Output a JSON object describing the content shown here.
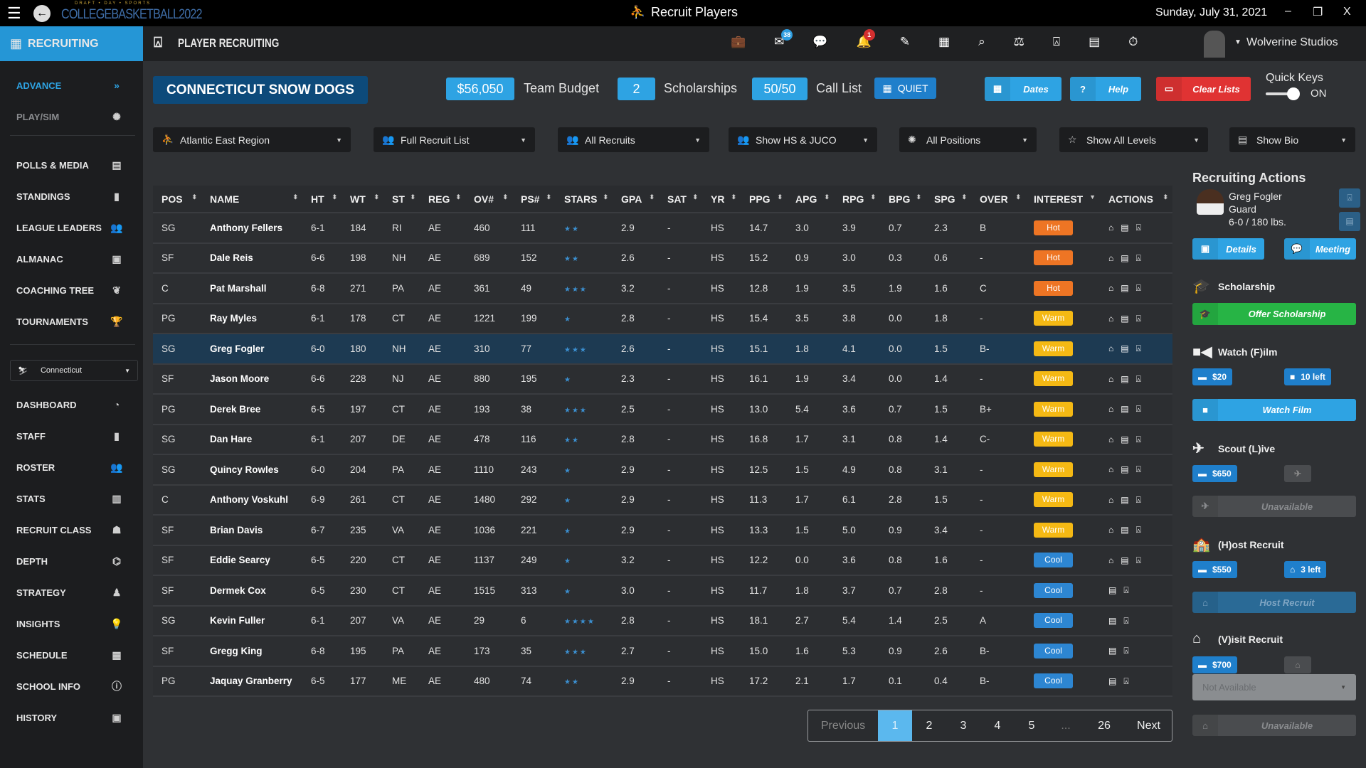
{
  "titlebar": {
    "logo_top": "DRAFT • DAY • SPORTS",
    "logo": "COLLEGEBASKETBALL2022",
    "title": "Recruit Players",
    "date": "Sunday, July 31, 2021",
    "minimize": "–",
    "restore": "❐",
    "close": "X"
  },
  "header": {
    "section": "RECRUITING",
    "page_title": "PLAYER RECRUITING",
    "mail_count": "38",
    "alert_count": "1",
    "user": "Wolverine Studios"
  },
  "sidebar": {
    "top": [
      {
        "label": "ADVANCE",
        "icon": "»"
      },
      {
        "label": "PLAY/SIM",
        "icon": "✺"
      }
    ],
    "league": [
      {
        "label": "POLLS & MEDIA",
        "icon": "▤"
      },
      {
        "label": "STANDINGS",
        "icon": "▮"
      },
      {
        "label": "LEAGUE LEADERS",
        "icon": "👥"
      },
      {
        "label": "ALMANAC",
        "icon": "▣"
      },
      {
        "label": "COACHING TREE",
        "icon": "❦"
      },
      {
        "label": "TOURNAMENTS",
        "icon": "🏆"
      }
    ],
    "team_select": "Connecticut",
    "team": [
      {
        "label": "DASHBOARD",
        "icon": "◔"
      },
      {
        "label": "STAFF",
        "icon": "▮"
      },
      {
        "label": "ROSTER",
        "icon": "👥"
      },
      {
        "label": "STATS",
        "icon": "▥"
      },
      {
        "label": "RECRUIT CLASS",
        "icon": "☗"
      },
      {
        "label": "DEPTH",
        "icon": "⌬"
      },
      {
        "label": "STRATEGY",
        "icon": "♟"
      },
      {
        "label": "INSIGHTS",
        "icon": "💡"
      },
      {
        "label": "SCHEDULE",
        "icon": "▦"
      },
      {
        "label": "SCHOOL INFO",
        "icon": "ⓘ"
      },
      {
        "label": "HISTORY",
        "icon": "▣"
      }
    ]
  },
  "summary": {
    "team_name": "CONNECTICUT SNOW DOGS",
    "budget": "$56,050",
    "budget_label": "Team Budget",
    "scholarships": "2",
    "scholarships_label": "Scholarships",
    "call_list": "50/50",
    "call_list_label": "Call List",
    "quiet": "QUIET",
    "dates": "Dates",
    "help": "Help",
    "clear": "Clear Lists",
    "quick_keys": "Quick Keys",
    "quick_keys_state": "ON"
  },
  "filters": [
    "Atlantic East Region",
    "Full Recruit List",
    "All Recruits",
    "Show HS & JUCO",
    "All Positions",
    "Show All Levels",
    "Show Bio"
  ],
  "columns": [
    "POS",
    "NAME",
    "HT",
    "WT",
    "ST",
    "REG",
    "OV#",
    "PS#",
    "STARS",
    "GPA",
    "SAT",
    "YR",
    "PPG",
    "APG",
    "RPG",
    "BPG",
    "SPG",
    "OVER",
    "INTEREST",
    "ACTIONS"
  ],
  "rows": [
    [
      "SG",
      "Anthony Fellers",
      "6-1",
      "184",
      "RI",
      "AE",
      "460",
      "111",
      2,
      "2.9",
      "-",
      "HS",
      "14.7",
      "3.0",
      "3.9",
      "0.7",
      "2.3",
      "B",
      "Hot",
      3
    ],
    [
      "SF",
      "Dale Reis",
      "6-6",
      "198",
      "NH",
      "AE",
      "689",
      "152",
      2,
      "2.6",
      "-",
      "HS",
      "15.2",
      "0.9",
      "3.0",
      "0.3",
      "0.6",
      "-",
      "Hot",
      3
    ],
    [
      "C",
      "Pat Marshall",
      "6-8",
      "271",
      "PA",
      "AE",
      "361",
      "49",
      3,
      "3.2",
      "-",
      "HS",
      "12.8",
      "1.9",
      "3.5",
      "1.9",
      "1.6",
      "C",
      "Hot",
      3
    ],
    [
      "PG",
      "Ray Myles",
      "6-1",
      "178",
      "CT",
      "AE",
      "1221",
      "199",
      1,
      "2.8",
      "-",
      "HS",
      "15.4",
      "3.5",
      "3.8",
      "0.0",
      "1.8",
      "-",
      "Warm",
      3
    ],
    [
      "SG",
      "Greg Fogler",
      "6-0",
      "180",
      "NH",
      "AE",
      "310",
      "77",
      3,
      "2.6",
      "-",
      "HS",
      "15.1",
      "1.8",
      "4.1",
      "0.0",
      "1.5",
      "B-",
      "Warm",
      3
    ],
    [
      "SF",
      "Jason Moore",
      "6-6",
      "228",
      "NJ",
      "AE",
      "880",
      "195",
      1,
      "2.3",
      "-",
      "HS",
      "16.1",
      "1.9",
      "3.4",
      "0.0",
      "1.4",
      "-",
      "Warm",
      3
    ],
    [
      "PG",
      "Derek Bree",
      "6-5",
      "197",
      "CT",
      "AE",
      "193",
      "38",
      3,
      "2.5",
      "-",
      "HS",
      "13.0",
      "5.4",
      "3.6",
      "0.7",
      "1.5",
      "B+",
      "Warm",
      3
    ],
    [
      "SG",
      "Dan Hare",
      "6-1",
      "207",
      "DE",
      "AE",
      "478",
      "116",
      2,
      "2.8",
      "-",
      "HS",
      "16.8",
      "1.7",
      "3.1",
      "0.8",
      "1.4",
      "C-",
      "Warm",
      3
    ],
    [
      "SG",
      "Quincy Rowles",
      "6-0",
      "204",
      "PA",
      "AE",
      "1110",
      "243",
      1,
      "2.9",
      "-",
      "HS",
      "12.5",
      "1.5",
      "4.9",
      "0.8",
      "3.1",
      "-",
      "Warm",
      3
    ],
    [
      "C",
      "Anthony Voskuhl",
      "6-9",
      "261",
      "CT",
      "AE",
      "1480",
      "292",
      1,
      "2.9",
      "-",
      "HS",
      "11.3",
      "1.7",
      "6.1",
      "2.8",
      "1.5",
      "-",
      "Warm",
      3
    ],
    [
      "SF",
      "Brian Davis",
      "6-7",
      "235",
      "VA",
      "AE",
      "1036",
      "221",
      1,
      "2.9",
      "-",
      "HS",
      "13.3",
      "1.5",
      "5.0",
      "0.9",
      "3.4",
      "-",
      "Warm",
      3
    ],
    [
      "SF",
      "Eddie Searcy",
      "6-5",
      "220",
      "CT",
      "AE",
      "1137",
      "249",
      1,
      "3.2",
      "-",
      "HS",
      "12.2",
      "0.0",
      "3.6",
      "0.8",
      "1.6",
      "-",
      "Cool",
      3
    ],
    [
      "SF",
      "Dermek Cox",
      "6-5",
      "230",
      "CT",
      "AE",
      "1515",
      "313",
      1,
      "3.0",
      "-",
      "HS",
      "11.7",
      "1.8",
      "3.7",
      "0.7",
      "2.8",
      "-",
      "Cool",
      2
    ],
    [
      "SG",
      "Kevin Fuller",
      "6-1",
      "207",
      "VA",
      "AE",
      "29",
      "6",
      4,
      "2.8",
      "-",
      "HS",
      "18.1",
      "2.7",
      "5.4",
      "1.4",
      "2.5",
      "A",
      "Cool",
      2
    ],
    [
      "SF",
      "Gregg King",
      "6-8",
      "195",
      "PA",
      "AE",
      "173",
      "35",
      3,
      "2.7",
      "-",
      "HS",
      "15.0",
      "1.6",
      "5.3",
      "0.9",
      "2.6",
      "B-",
      "Cool",
      2
    ],
    [
      "PG",
      "Jaquay Granberry",
      "6-5",
      "177",
      "ME",
      "AE",
      "480",
      "74",
      2,
      "2.9",
      "-",
      "HS",
      "17.2",
      "2.1",
      "1.7",
      "0.1",
      "0.4",
      "B-",
      "Cool",
      2
    ]
  ],
  "selected_row": 4,
  "interest_colors": {
    "Hot": "#ee7524",
    "Warm": "#f5b914",
    "Cool": "#2d86d2"
  },
  "pagination": {
    "prev": "Previous",
    "pages": [
      "1",
      "2",
      "3",
      "4",
      "5",
      "...",
      "26"
    ],
    "next": "Next",
    "current": "1"
  },
  "actions_panel": {
    "title": "Recruiting Actions",
    "player_name": "Greg Fogler",
    "player_pos": "Guard",
    "player_size": "6-0 / 180 lbs.",
    "details": "Details",
    "meeting": "Meeting",
    "scholarship": "Scholarship",
    "offer": "Offer Scholarship",
    "film": "Watch (F)ilm",
    "film_cost": "$20",
    "film_left": "10 left",
    "watch_film": "Watch Film",
    "scout": "Scout (L)ive",
    "scout_cost": "$650",
    "scout_btn": "Unavailable",
    "host": "(H)ost Recruit",
    "host_cost": "$550",
    "host_left": "3 left",
    "host_btn": "Host Recruit",
    "visit": "(V)isit Recruit",
    "visit_cost": "$700",
    "visit_select": "Not Available",
    "visit_btn": "Unavailable"
  },
  "colors": {
    "accent": "#2ea3e3",
    "team_box": "#0d4a7a",
    "clear": "#e03333",
    "offer": "#27b445"
  }
}
